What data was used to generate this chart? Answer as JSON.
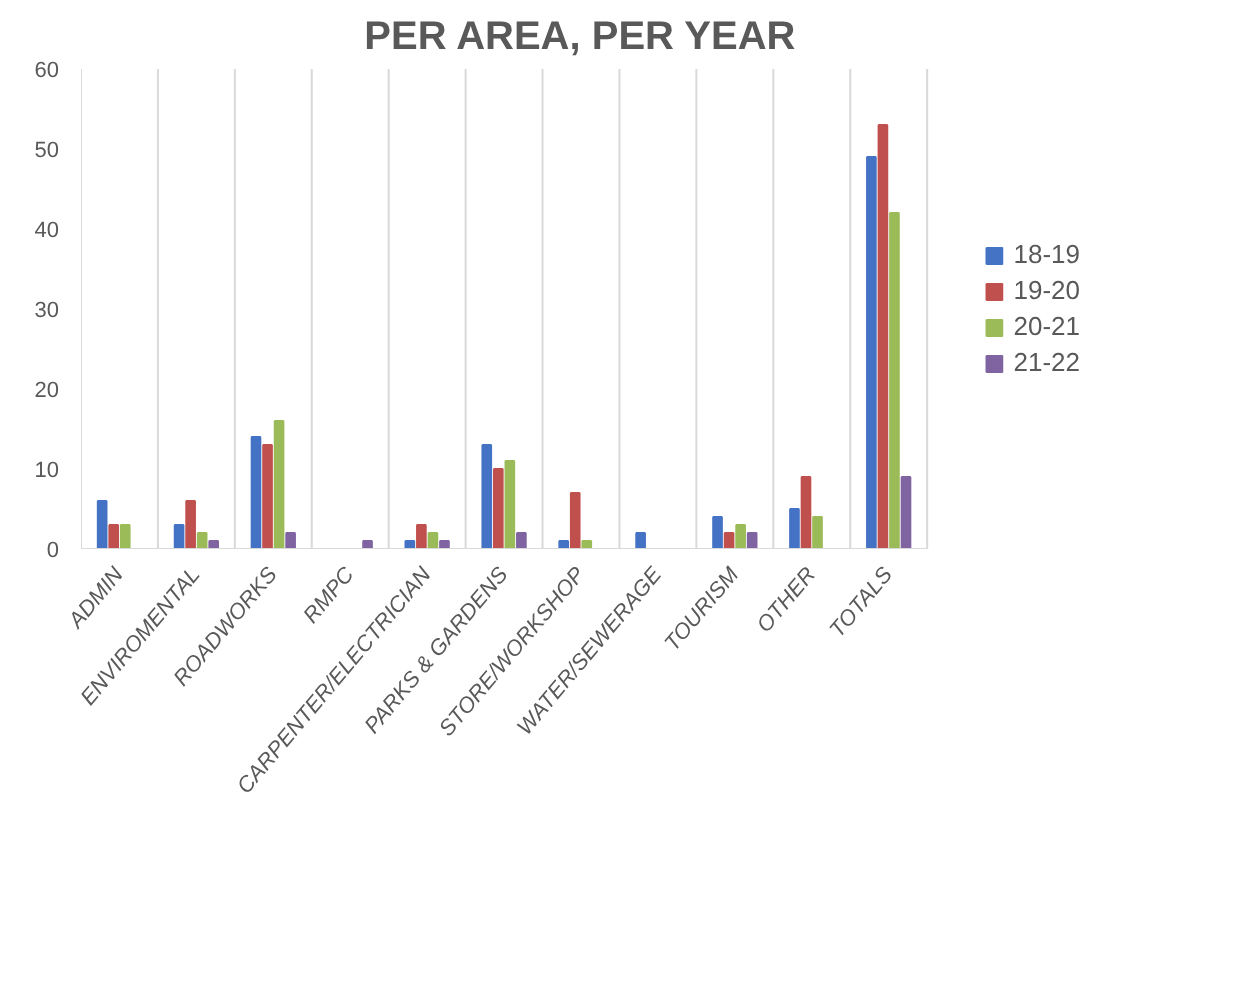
{
  "chart_data": {
    "type": "bar",
    "title": "PER AREA, PER YEAR",
    "categories": [
      "ADMIN",
      "ENVIROMENTAL",
      "ROADWORKS",
      "RMPC",
      "CARPENTER/ELECTRICIAN",
      "PARKS & GARDENS",
      "STORE/WORKSHOP",
      "WATER/SEWERAGE",
      "TOURISM",
      "OTHER",
      "TOTALS"
    ],
    "series": [
      {
        "name": "18-19",
        "color": "#4472c4",
        "values": [
          6,
          3,
          14,
          0,
          1,
          13,
          1,
          2,
          4,
          5,
          49
        ]
      },
      {
        "name": "19-20",
        "color": "#c0504d",
        "values": [
          3,
          6,
          13,
          0,
          3,
          10,
          7,
          0,
          2,
          9,
          53
        ]
      },
      {
        "name": "20-21",
        "color": "#9bbb59",
        "values": [
          3,
          2,
          16,
          0,
          2,
          11,
          1,
          0,
          3,
          4,
          42
        ]
      },
      {
        "name": "21-22",
        "color": "#8064a2",
        "values": [
          0,
          1,
          2,
          1,
          1,
          2,
          0,
          0,
          2,
          0,
          9
        ]
      }
    ],
    "ylim": [
      0,
      60
    ],
    "yticks": [
      0,
      10,
      20,
      30,
      40,
      50,
      60
    ],
    "grid": "x",
    "legend": "right"
  }
}
